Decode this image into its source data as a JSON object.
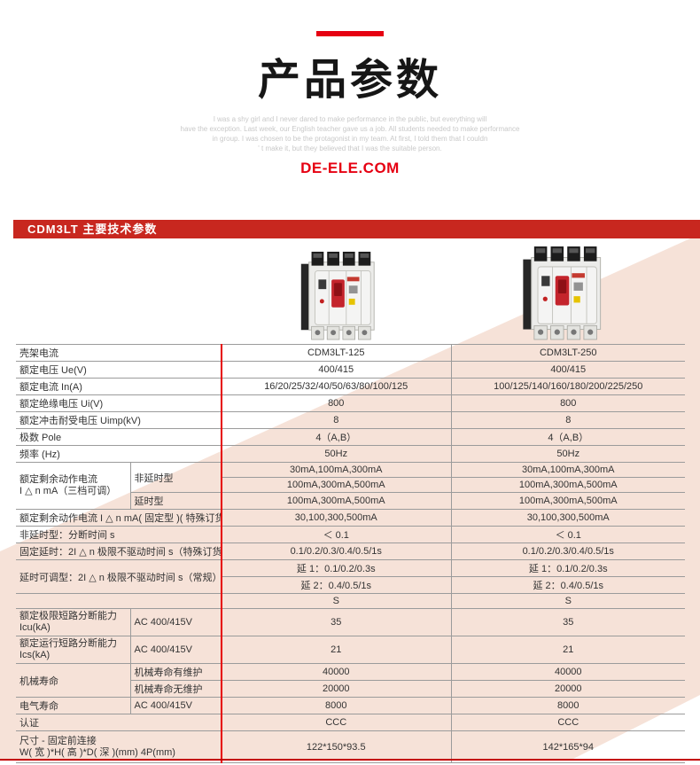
{
  "header": {
    "title": "产品参数",
    "site": "DE-ELE.COM",
    "watermark_lines": [
      "I was a shy girl and I never dared to make performance in the public, but everything will",
      "have the exception. Last week, our English teacher gave us a job. All students needed to make performance",
      "in group. I was chosen to be the protagonist in my team. At first, I told them that I couldn",
      "' t make it, but they believed that I was the suitable person."
    ]
  },
  "section": {
    "banner": "CDM3LT 主要技术参数"
  },
  "products": [
    {
      "model": "CDM3LT-125"
    },
    {
      "model": "CDM3LT-250"
    }
  ],
  "colors": {
    "accent_red": "#e60012",
    "banner_red": "#c8271f",
    "table_divider_red": "#e60000",
    "bottom_rule_red": "#c40000",
    "pink_band": "#f6e2d8",
    "grid_gray": "#9b9b9b"
  },
  "table": {
    "rows": [
      {
        "cells": [
          {
            "type": "label",
            "colspan": 2,
            "text": "壳架电流"
          },
          {
            "type": "value",
            "text": "CDM3LT-125"
          },
          {
            "type": "value",
            "divider": true,
            "text": "CDM3LT-250"
          }
        ]
      },
      {
        "cells": [
          {
            "type": "label",
            "colspan": 2,
            "text": "额定电压 Ue(V)"
          },
          {
            "type": "value",
            "text": "400/415"
          },
          {
            "type": "value",
            "divider": true,
            "text": "400/415"
          }
        ]
      },
      {
        "cells": [
          {
            "type": "label",
            "colspan": 2,
            "text": "额定电流 In(A)"
          },
          {
            "type": "value",
            "text": "16/20/25/32/40/50/63/80/100/125"
          },
          {
            "type": "value",
            "divider": true,
            "text": "100/125/140/160/180/200/225/250"
          }
        ]
      },
      {
        "cells": [
          {
            "type": "label",
            "colspan": 2,
            "text": "额定绝缘电压 Ui(V)"
          },
          {
            "type": "value",
            "text": "800"
          },
          {
            "type": "value",
            "divider": true,
            "text": "800"
          }
        ]
      },
      {
        "cells": [
          {
            "type": "label",
            "colspan": 2,
            "text": "额定冲击耐受电压 Uimp(kV)"
          },
          {
            "type": "value",
            "text": "8"
          },
          {
            "type": "value",
            "divider": true,
            "text": "8"
          }
        ]
      },
      {
        "cells": [
          {
            "type": "label",
            "colspan": 2,
            "text": "极数 Pole"
          },
          {
            "type": "value",
            "text": "4（A,B）"
          },
          {
            "type": "value",
            "divider": true,
            "text": "4（A,B）"
          }
        ]
      },
      {
        "cells": [
          {
            "type": "label",
            "colspan": 2,
            "text": "频率 (Hz)"
          },
          {
            "type": "value",
            "text": "50Hz"
          },
          {
            "type": "value",
            "divider": true,
            "text": "50Hz"
          }
        ]
      },
      {
        "cells": [
          {
            "type": "label",
            "rowspan": 3,
            "lines": [
              "额定剩余动作电流",
              "I △ n mA（三档可调）"
            ]
          },
          {
            "type": "label",
            "rowspan": 2,
            "divider": true,
            "text": "非延时型"
          },
          {
            "type": "value",
            "text": "30mA,100mA,300mA"
          },
          {
            "type": "value",
            "divider": true,
            "text": "30mA,100mA,300mA"
          }
        ]
      },
      {
        "cells": [
          {
            "type": "value",
            "text": "100mA,300mA,500mA"
          },
          {
            "type": "value",
            "divider": true,
            "text": "100mA,300mA,500mA"
          }
        ]
      },
      {
        "cells": [
          {
            "type": "label",
            "divider": true,
            "text": "延时型"
          },
          {
            "type": "value",
            "text": "100mA,300mA,500mA"
          },
          {
            "type": "value",
            "divider": true,
            "text": "100mA,300mA,500mA"
          }
        ]
      },
      {
        "cells": [
          {
            "type": "label",
            "colspan": 2,
            "text": "额定剩余动作电流 I △ n mA( 固定型 )( 特殊订货 )"
          },
          {
            "type": "value",
            "text": "30,100,300,500mA"
          },
          {
            "type": "value",
            "divider": true,
            "text": "30,100,300,500mA"
          }
        ]
      },
      {
        "cells": [
          {
            "type": "label",
            "colspan": 2,
            "text": "非延时型：分断时间 s"
          },
          {
            "type": "value",
            "text": "＜ 0.1"
          },
          {
            "type": "value",
            "divider": true,
            "text": "＜ 0.1"
          }
        ]
      },
      {
        "cells": [
          {
            "type": "label",
            "colspan": 2,
            "text": "固定延时：2I △ n 极限不驱动时间 s（特殊订货）"
          },
          {
            "type": "value",
            "text": "0.1/0.2/0.3/0.4/0.5/1s"
          },
          {
            "type": "value",
            "divider": true,
            "text": "0.1/0.2/0.3/0.4/0.5/1s"
          }
        ]
      },
      {
        "cells": [
          {
            "type": "label",
            "colspan": 2,
            "rowspan": 2,
            "text": "延时可调型：2I △ n 极限不驱动时间 s（常规）"
          },
          {
            "type": "value",
            "text": "延 1：0.1/0.2/0.3s"
          },
          {
            "type": "value",
            "divider": true,
            "text": "延 1：0.1/0.2/0.3s"
          }
        ]
      },
      {
        "cells": [
          {
            "type": "value",
            "text": "延 2：0.4/0.5/1s"
          },
          {
            "type": "value",
            "divider": true,
            "text": "延 2：0.4/0.5/1s"
          }
        ]
      },
      {
        "cells": [
          {
            "type": "label",
            "colspan": 2,
            "text": ""
          },
          {
            "type": "value",
            "text": "S"
          },
          {
            "type": "value",
            "divider": true,
            "text": "S"
          }
        ]
      },
      {
        "h": "m",
        "cells": [
          {
            "type": "label",
            "lines": [
              "额定极限短路分断能力",
              "Icu(kA)"
            ]
          },
          {
            "type": "label",
            "divider": true,
            "text": "AC 400/415V"
          },
          {
            "type": "value",
            "text": "35"
          },
          {
            "type": "value",
            "divider": true,
            "text": "35"
          }
        ]
      },
      {
        "h": "m",
        "cells": [
          {
            "type": "label",
            "lines": [
              "额定运行短路分断能力",
              "Ics(kA)"
            ]
          },
          {
            "type": "label",
            "divider": true,
            "text": "AC 400/415V"
          },
          {
            "type": "value",
            "text": "21"
          },
          {
            "type": "value",
            "divider": true,
            "text": "21"
          }
        ]
      },
      {
        "cells": [
          {
            "type": "label",
            "rowspan": 2,
            "text": "机械寿命"
          },
          {
            "type": "label",
            "divider": true,
            "text": "机械寿命有维护"
          },
          {
            "type": "value",
            "text": "40000"
          },
          {
            "type": "value",
            "divider": true,
            "text": "40000"
          }
        ]
      },
      {
        "cells": [
          {
            "type": "label",
            "divider": true,
            "text": "机械寿命无维护"
          },
          {
            "type": "value",
            "text": "20000"
          },
          {
            "type": "value",
            "divider": true,
            "text": "20000"
          }
        ]
      },
      {
        "cells": [
          {
            "type": "label",
            "text": "电气寿命"
          },
          {
            "type": "label",
            "divider": true,
            "text": "AC 400/415V"
          },
          {
            "type": "value",
            "text": "8000"
          },
          {
            "type": "value",
            "divider": true,
            "text": "8000"
          }
        ]
      },
      {
        "cells": [
          {
            "type": "label",
            "colspan": 2,
            "text": "认证"
          },
          {
            "type": "value",
            "text": "CCC"
          },
          {
            "type": "value",
            "divider": true,
            "text": "CCC"
          }
        ]
      },
      {
        "h": "l",
        "cells": [
          {
            "type": "label",
            "colspan": 2,
            "lines": [
              "尺寸 - 固定前连接",
              "W( 宽 )*H( 高 )*D( 深 )(mm) 4P(mm)"
            ]
          },
          {
            "type": "value",
            "text": "122*150*93.5"
          },
          {
            "type": "value",
            "divider": true,
            "text": "142*165*94"
          }
        ]
      }
    ]
  }
}
